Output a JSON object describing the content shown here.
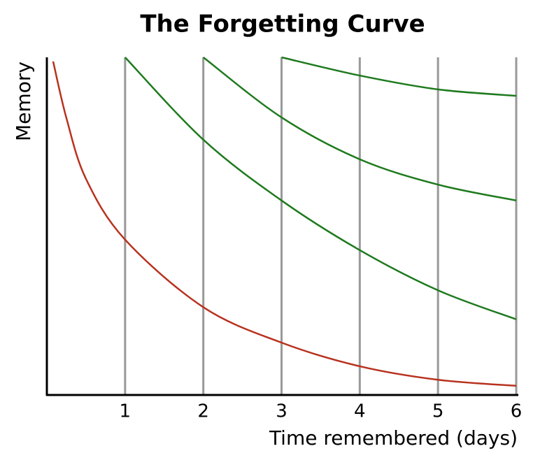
{
  "chart_data": {
    "type": "line",
    "title": "The Forgetting Curve",
    "x_label": "Time remembered (days)",
    "y_label": "Memory",
    "xlim": [
      0,
      6
    ],
    "xticks": [
      1,
      2,
      3,
      4,
      5,
      6
    ],
    "ylim": [
      0,
      100
    ],
    "grid": true,
    "series": [
      {
        "color": "#b8321f",
        "x": [
          0.08,
          0.25,
          0.5,
          1,
          2,
          3,
          4,
          5,
          6
        ],
        "values": [
          98.8,
          82,
          64,
          46,
          26,
          15.5,
          8.5,
          4.5,
          2.7
        ]
      },
      {
        "color": "#1e7a1e",
        "x": [
          1,
          2,
          3,
          4,
          5,
          6
        ],
        "values": [
          100,
          75.6,
          57.6,
          42.9,
          31,
          22.4
        ]
      },
      {
        "color": "#1e7a1e",
        "x": [
          2,
          3,
          4,
          5,
          6
        ],
        "values": [
          100,
          82.2,
          69.8,
          62.3,
          57.6
        ]
      },
      {
        "color": "#1e7a1e",
        "x": [
          3,
          4,
          5,
          6
        ],
        "values": [
          100,
          94.6,
          90.5,
          88.6
        ]
      }
    ]
  }
}
